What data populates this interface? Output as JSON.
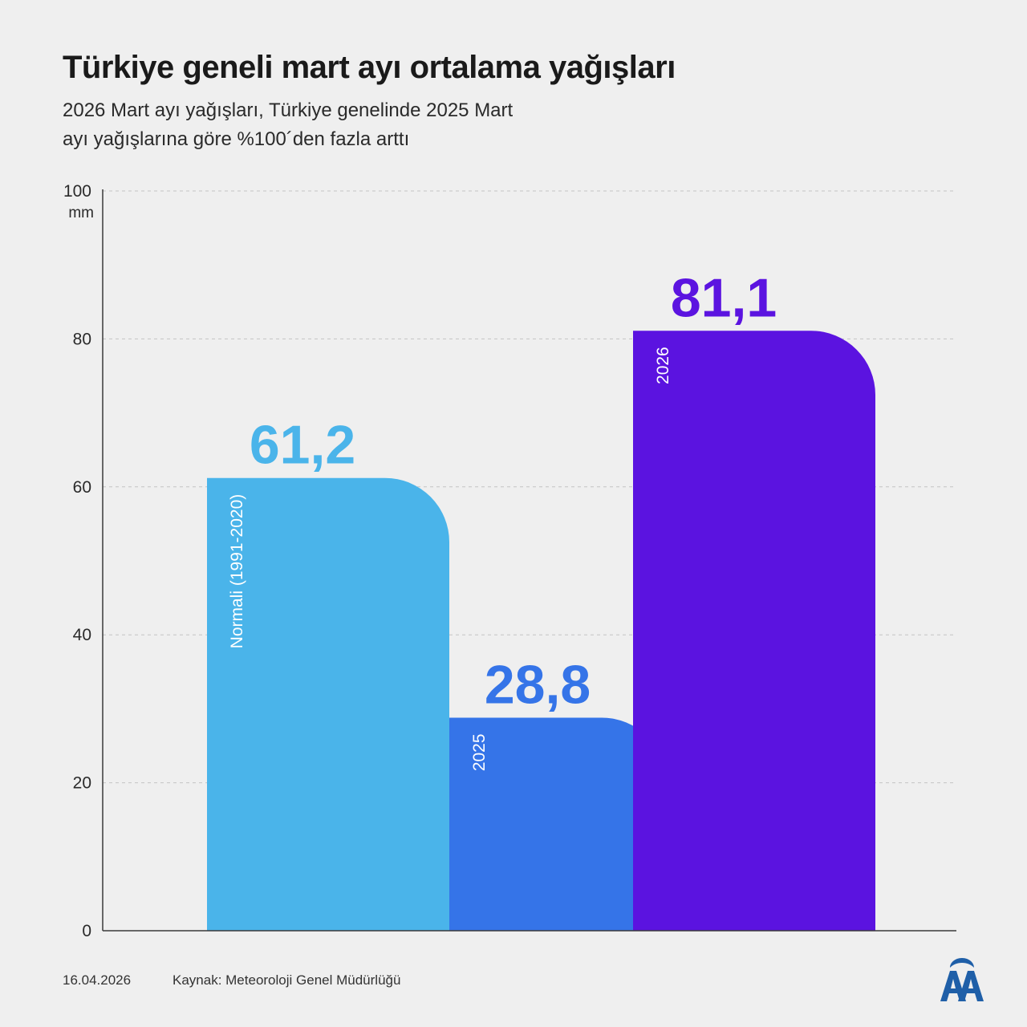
{
  "title": "Türkiye geneli mart ayı ortalama yağışları",
  "subtitle_lines": [
    "2026 Mart ayı yağışları, Türkiye genelinde 2025 Mart",
    "ayı yağışlarına göre %100´den fazla arttı"
  ],
  "footer": {
    "date": "16.04.2026",
    "source": "Kaynak: Meteoroloji Genel Müdürlüğü"
  },
  "logo": {
    "icon": "aa-logo-icon",
    "text": "AA",
    "color": "#1f5fa8"
  },
  "chart_data": {
    "type": "bar",
    "ylim": [
      0,
      100
    ],
    "y_ticks": [
      0,
      20,
      40,
      60,
      80,
      100
    ],
    "y_unit": "mm",
    "grid": true,
    "categories": [
      "Normali (1991-2020)",
      "2025",
      "2026"
    ],
    "values": [
      61.2,
      28.8,
      81.1
    ],
    "value_labels": [
      "61,2",
      "28,8",
      "81,1"
    ],
    "colors": [
      "#4ab4ea",
      "#3574e8",
      "#5b13e0"
    ]
  }
}
